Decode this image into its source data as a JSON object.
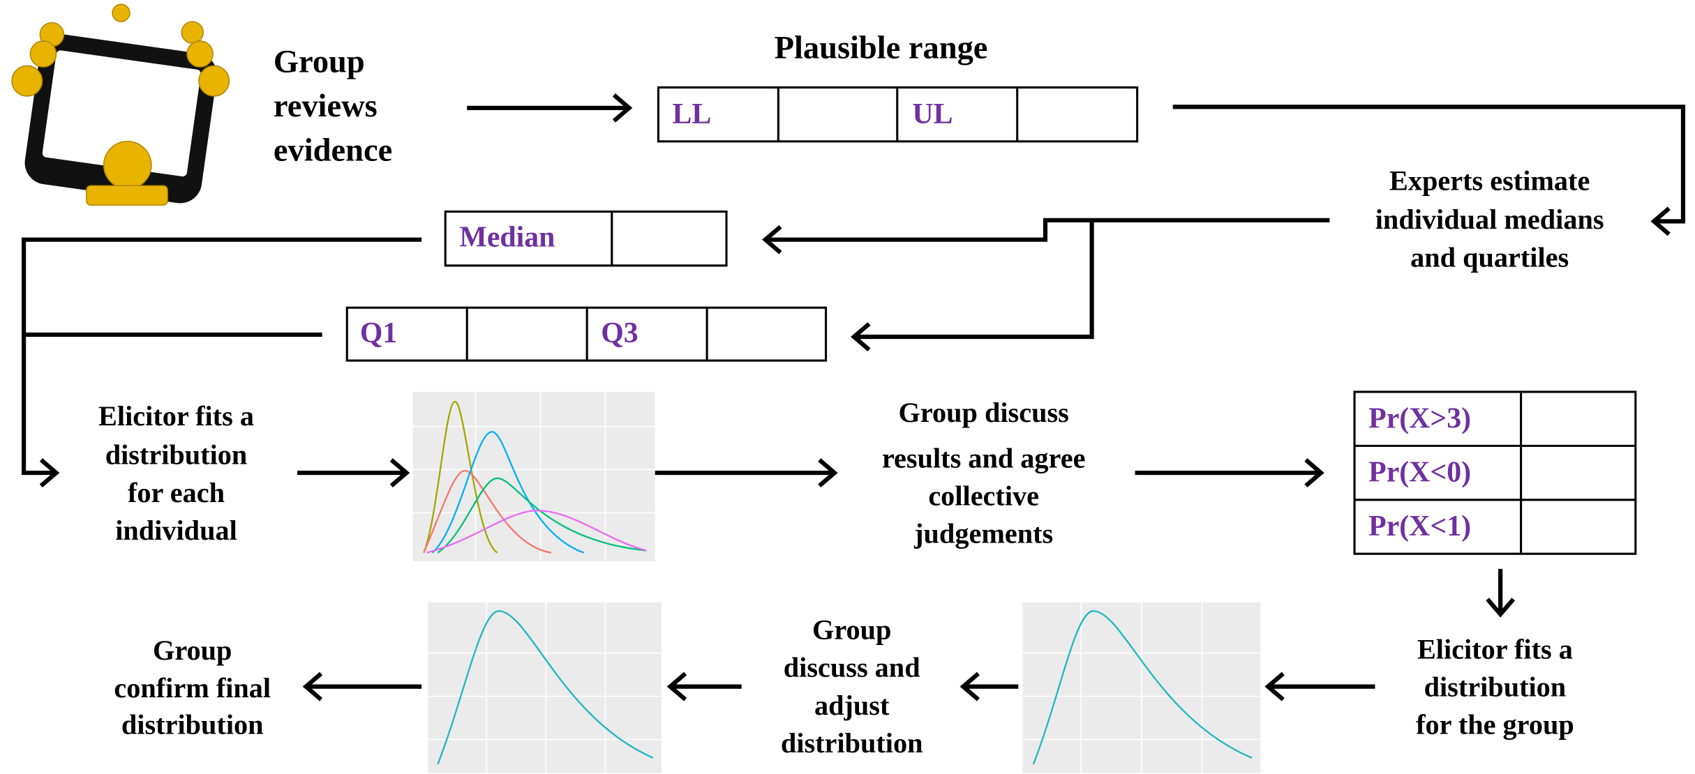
{
  "review": [
    "Group",
    "reviews",
    "evidence"
  ],
  "range": {
    "title": "Plausible range",
    "cells": [
      "LL",
      "UL"
    ]
  },
  "estimate": [
    "Experts estimate",
    "individual medians",
    "and quartiles"
  ],
  "median": "Median",
  "quartiles": [
    "Q1",
    "Q3"
  ],
  "fit_individual": [
    "Elicitor fits a",
    "distribution",
    "for each",
    "individual"
  ],
  "discuss": [
    "Group discuss",
    "results and agree",
    "collective",
    "judgements"
  ],
  "probabilities": [
    "Pr(X>3)",
    "Pr(X<0)",
    "Pr(X<1)"
  ],
  "fit_group": [
    "Elicitor fits a",
    "distribution",
    "for the group"
  ],
  "adjust": [
    "Group",
    "discuss and",
    "adjust",
    "distribution"
  ],
  "confirm": [
    "Group",
    "confirm final",
    "distribution"
  ]
}
